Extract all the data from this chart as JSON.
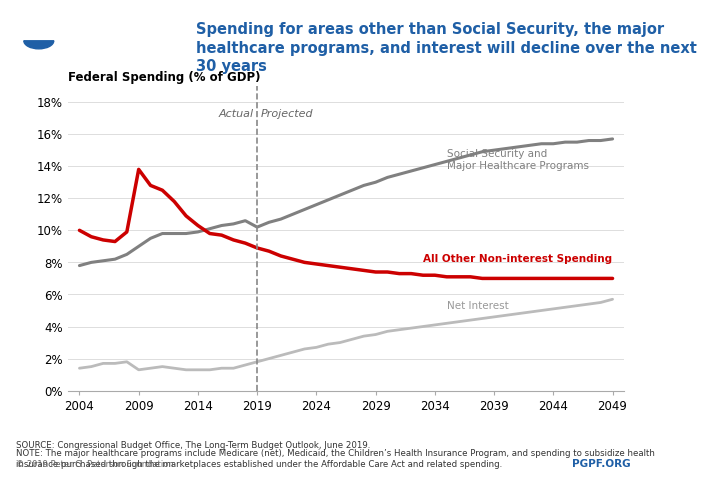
{
  "title": "Spending for areas other than Social Security, the major\nhealthcare programs, and interest will decline over the next\n30 years",
  "ylabel": "Federal Spending (% of GDP)",
  "xlabel_ticks": [
    2004,
    2009,
    2014,
    2019,
    2024,
    2029,
    2034,
    2039,
    2044,
    2049
  ],
  "yticks": [
    0,
    2,
    4,
    6,
    8,
    10,
    12,
    14,
    16,
    18
  ],
  "ylim": [
    0,
    19
  ],
  "xlim": [
    2003,
    2050
  ],
  "divider_year": 2019,
  "title_color": "#1f5fa6",
  "background_color": "#ffffff",
  "source_text": "SOURCE: Congressional Budget Office, The Long-Term Budget Outlook, June 2019.",
  "note_text": "NOTE: The major healthcare programs include Medicare (net), Medicaid, the Children’s Health Insurance Program, and spending to subsidize health\ninsurance purchased through the marketplaces established under the Affordable Care Act and related spending.",
  "copyright_text": "© 2019 Peter G. Peterson Foundation",
  "pgpf_text": "PGPF.ORG",
  "series": {
    "social_security": {
      "color": "#808080",
      "label": "Social Security and\nMajor Healthcare Programs",
      "linewidth": 2.2,
      "years": [
        2004,
        2005,
        2006,
        2007,
        2008,
        2009,
        2010,
        2011,
        2012,
        2013,
        2014,
        2015,
        2016,
        2017,
        2018,
        2019,
        2020,
        2021,
        2022,
        2023,
        2024,
        2025,
        2026,
        2027,
        2028,
        2029,
        2030,
        2031,
        2032,
        2033,
        2034,
        2035,
        2036,
        2037,
        2038,
        2039,
        2040,
        2041,
        2042,
        2043,
        2044,
        2045,
        2046,
        2047,
        2048,
        2049
      ],
      "values": [
        7.8,
        8.0,
        8.1,
        8.2,
        8.5,
        9.0,
        9.5,
        9.8,
        9.8,
        9.8,
        9.9,
        10.1,
        10.3,
        10.4,
        10.6,
        10.2,
        10.5,
        10.7,
        11.0,
        11.3,
        11.6,
        11.9,
        12.2,
        12.5,
        12.8,
        13.0,
        13.3,
        13.5,
        13.7,
        13.9,
        14.1,
        14.3,
        14.5,
        14.7,
        14.9,
        15.0,
        15.1,
        15.2,
        15.3,
        15.4,
        15.4,
        15.5,
        15.5,
        15.6,
        15.6,
        15.7
      ]
    },
    "other_spending": {
      "color": "#cc0000",
      "label": "All Other Non-interest Spending",
      "linewidth": 2.5,
      "years": [
        2004,
        2005,
        2006,
        2007,
        2008,
        2009,
        2010,
        2011,
        2012,
        2013,
        2014,
        2015,
        2016,
        2017,
        2018,
        2019,
        2020,
        2021,
        2022,
        2023,
        2024,
        2025,
        2026,
        2027,
        2028,
        2029,
        2030,
        2031,
        2032,
        2033,
        2034,
        2035,
        2036,
        2037,
        2038,
        2039,
        2040,
        2041,
        2042,
        2043,
        2044,
        2045,
        2046,
        2047,
        2048,
        2049
      ],
      "values": [
        10.0,
        9.6,
        9.4,
        9.3,
        9.9,
        13.8,
        12.8,
        12.5,
        11.8,
        10.9,
        10.3,
        9.8,
        9.7,
        9.4,
        9.2,
        8.9,
        8.7,
        8.4,
        8.2,
        8.0,
        7.9,
        7.8,
        7.7,
        7.6,
        7.5,
        7.4,
        7.4,
        7.3,
        7.3,
        7.2,
        7.2,
        7.1,
        7.1,
        7.1,
        7.0,
        7.0,
        7.0,
        7.0,
        7.0,
        7.0,
        7.0,
        7.0,
        7.0,
        7.0,
        7.0,
        7.0
      ]
    },
    "net_interest": {
      "color": "#bbbbbb",
      "label": "Net Interest",
      "linewidth": 2.0,
      "years": [
        2004,
        2005,
        2006,
        2007,
        2008,
        2009,
        2010,
        2011,
        2012,
        2013,
        2014,
        2015,
        2016,
        2017,
        2018,
        2019,
        2020,
        2021,
        2022,
        2023,
        2024,
        2025,
        2026,
        2027,
        2028,
        2029,
        2030,
        2031,
        2032,
        2033,
        2034,
        2035,
        2036,
        2037,
        2038,
        2039,
        2040,
        2041,
        2042,
        2043,
        2044,
        2045,
        2046,
        2047,
        2048,
        2049
      ],
      "values": [
        1.4,
        1.5,
        1.7,
        1.7,
        1.8,
        1.3,
        1.4,
        1.5,
        1.4,
        1.3,
        1.3,
        1.3,
        1.4,
        1.4,
        1.6,
        1.8,
        2.0,
        2.2,
        2.4,
        2.6,
        2.7,
        2.9,
        3.0,
        3.2,
        3.4,
        3.5,
        3.7,
        3.8,
        3.9,
        4.0,
        4.1,
        4.2,
        4.3,
        4.4,
        4.5,
        4.6,
        4.7,
        4.8,
        4.9,
        5.0,
        5.1,
        5.2,
        5.3,
        5.4,
        5.5,
        5.7
      ]
    }
  },
  "actual_label": "Actual",
  "projected_label": "Projected",
  "logo_colors": {
    "blue": "#1f5fa6",
    "white": "#ffffff",
    "background": "#1f5fa6"
  }
}
